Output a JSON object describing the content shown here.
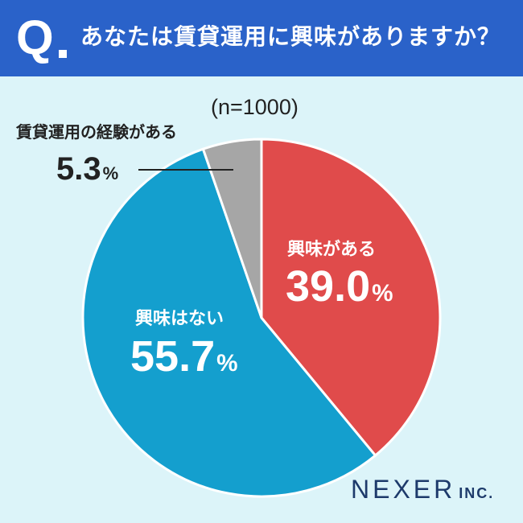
{
  "header": {
    "q_mark": "Q",
    "question": "あなたは賃貸運用に興味がありますか？"
  },
  "sample": "(n=1000)",
  "chart_data": {
    "type": "pie",
    "slices": [
      {
        "label": "興味がある",
        "value": 39.0,
        "display": "39.0",
        "color": "#e04b4b"
      },
      {
        "label": "興味はない",
        "value": 55.7,
        "display": "55.7",
        "color": "#149fce"
      },
      {
        "label": "賃貸運用の経験がある",
        "value": 5.3,
        "display": "5.3",
        "color": "#a6a6a6"
      }
    ],
    "unit": "%",
    "start": "12 o'clock, clockwise"
  },
  "logo": {
    "main": "NEXER",
    "sub": "INC."
  }
}
